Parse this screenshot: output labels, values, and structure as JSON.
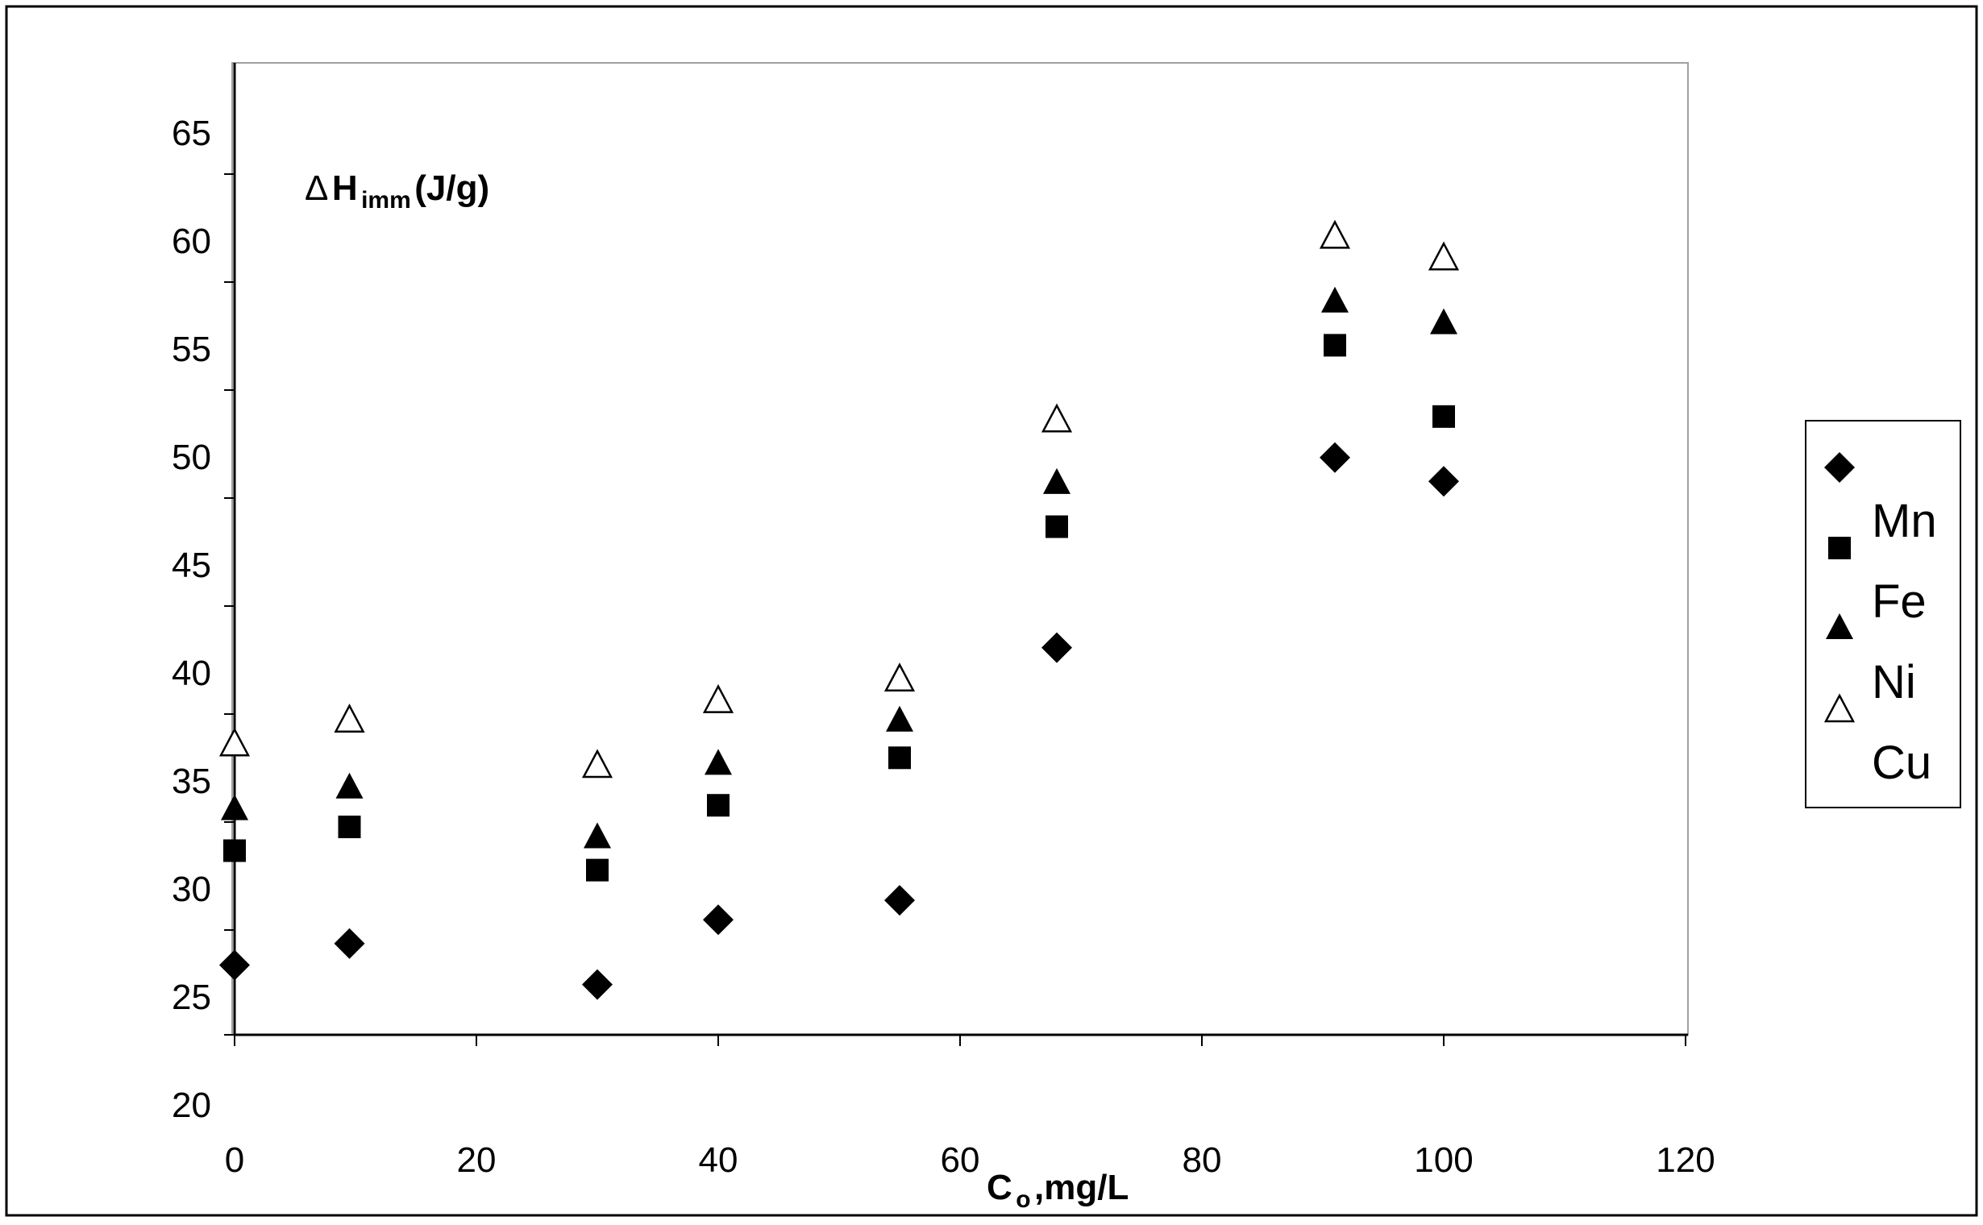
{
  "chart_data": {
    "type": "scatter",
    "title": "",
    "annotation": {
      "delta": "Δ",
      "main": "H",
      "sub": "imm",
      "unit": "(J/g)"
    },
    "xlabel": {
      "main": "C",
      "sub": "o",
      "rest": ",mg/L"
    },
    "ylabel": "",
    "xlim": [
      0,
      120
    ],
    "ylim": [
      25,
      68
    ],
    "x_ticks": [
      "0",
      "20",
      "40",
      "60",
      "80",
      "100",
      "120"
    ],
    "y_ticks": [
      "65",
      "60",
      "55",
      "50",
      "45",
      "40",
      "35",
      "30",
      "25",
      "20"
    ],
    "grid": false,
    "legend_position": "right",
    "series": [
      {
        "name": "Mn",
        "marker": "filled-diamond",
        "color": "#000000",
        "points": [
          [
            0,
            28.3
          ],
          [
            9.5,
            29.3
          ],
          [
            30,
            27.4
          ],
          [
            40,
            30.4
          ],
          [
            55,
            31.3
          ],
          [
            68,
            43.0
          ],
          [
            91,
            51.8
          ],
          [
            100,
            50.7
          ]
        ]
      },
      {
        "name": "Fe",
        "marker": "filled-square",
        "color": "#000000",
        "points": [
          [
            0,
            33.6
          ],
          [
            9.5,
            34.7
          ],
          [
            30,
            32.7
          ],
          [
            40,
            35.7
          ],
          [
            55,
            37.9
          ],
          [
            68,
            48.6
          ],
          [
            91,
            57.0
          ],
          [
            100,
            53.7
          ]
        ]
      },
      {
        "name": "Ni",
        "marker": "filled-triangle",
        "color": "#000000",
        "points": [
          [
            0,
            35.5
          ],
          [
            9.5,
            36.5
          ],
          [
            30,
            34.2
          ],
          [
            40,
            37.6
          ],
          [
            55,
            39.6
          ],
          [
            68,
            50.6
          ],
          [
            91,
            59.0
          ],
          [
            100,
            58.0
          ]
        ]
      },
      {
        "name": "Cu",
        "marker": "open-triangle",
        "color": "#000000",
        "points": [
          [
            0,
            38.5
          ],
          [
            9.5,
            39.6
          ],
          [
            30,
            37.5
          ],
          [
            40,
            40.5
          ],
          [
            55,
            41.5
          ],
          [
            68,
            53.5
          ],
          [
            91,
            62.0
          ],
          [
            100,
            61.0
          ]
        ]
      }
    ]
  }
}
